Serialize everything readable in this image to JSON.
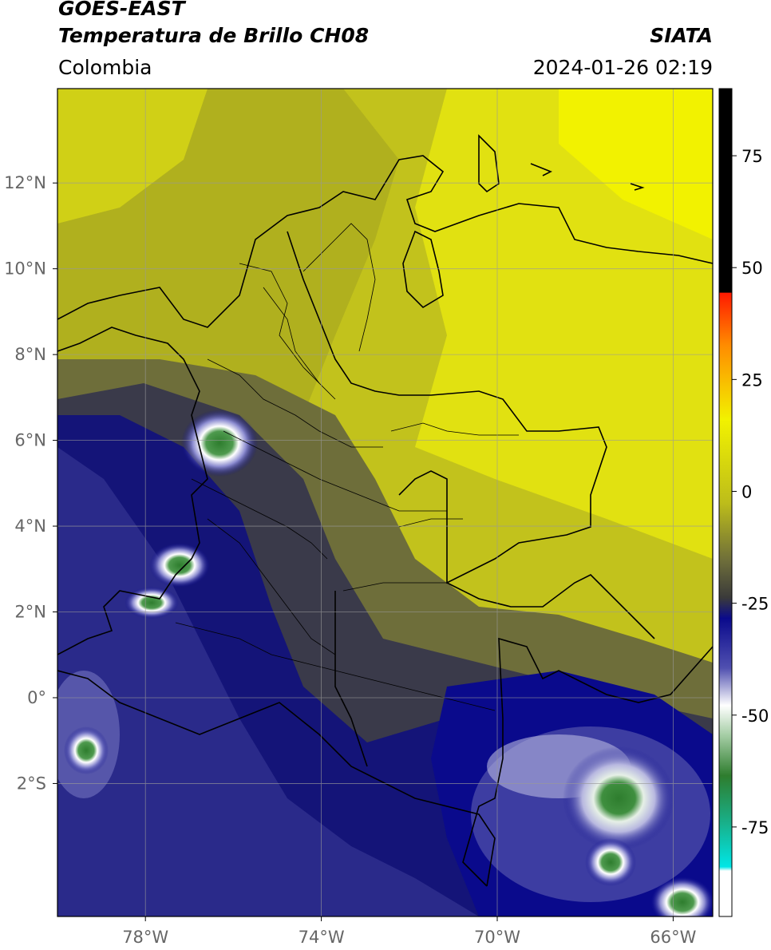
{
  "header": {
    "satellite": "GOES-EAST",
    "product": "Temperatura de Brillo CH08",
    "brand": "SIATA",
    "region": "Colombia",
    "datetime": "2024-01-26 02:19"
  },
  "map": {
    "lon_range": [
      -80,
      -65.1
    ],
    "lat_range": [
      -5.1,
      14.2
    ],
    "lon_ticks": [
      {
        "value": -78,
        "label": "78°W"
      },
      {
        "value": -74,
        "label": "74°W"
      },
      {
        "value": -70,
        "label": "70°W"
      },
      {
        "value": -66,
        "label": "66°W"
      }
    ],
    "lat_ticks": [
      {
        "value": 12,
        "label": "12°N"
      },
      {
        "value": 10,
        "label": "10°N"
      },
      {
        "value": 8,
        "label": "8°N"
      },
      {
        "value": 6,
        "label": "6°N"
      },
      {
        "value": 4,
        "label": "4°N"
      },
      {
        "value": 2,
        "label": "2°N"
      },
      {
        "value": 0,
        "label": "0°"
      },
      {
        "value": -2,
        "label": "2°S"
      }
    ],
    "grid": true
  },
  "colorbar": {
    "range": [
      -95,
      90
    ],
    "ticks": [
      {
        "value": 75,
        "label": "75"
      },
      {
        "value": 50,
        "label": "50"
      },
      {
        "value": 25,
        "label": "25"
      },
      {
        "value": 0,
        "label": "0"
      },
      {
        "value": -25,
        "label": "-25"
      },
      {
        "value": -50,
        "label": "-50"
      },
      {
        "value": -75,
        "label": "-75"
      }
    ],
    "colors": {
      "black": "#000000",
      "red": "#ff1a00",
      "orange": "#ff8c00",
      "yellow": "#f2f200",
      "olive": "#8a8a2a",
      "dark_gray": "#3a3a3a",
      "navy": "#0a0a8c",
      "white": "#ffffff",
      "green": "#2e7d2e",
      "teal": "#17b38f",
      "cyan": "#00e6e6"
    }
  }
}
